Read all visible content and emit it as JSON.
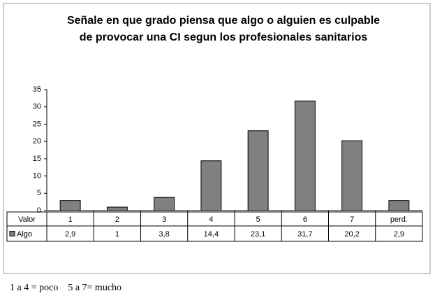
{
  "chart_data": {
    "type": "bar",
    "title": "Señale en que grado piensa que algo o alguien es culpable de provocar una CI segun los profesionales sanitarios",
    "x_label": "Valor",
    "categories": [
      "1",
      "2",
      "3",
      "4",
      "5",
      "6",
      "7",
      "perd."
    ],
    "series": [
      {
        "name": "Algo",
        "color": "#808080",
        "values": [
          2.9,
          1,
          3.8,
          14.4,
          23.1,
          31.7,
          20.2,
          2.9
        ],
        "value_labels": [
          "2,9",
          "1",
          "3,8",
          "14,4",
          "23,1",
          "31,7",
          "20,2",
          "2,9"
        ]
      }
    ],
    "ylim": [
      0,
      35
    ],
    "yticks": [
      0,
      5,
      10,
      15,
      20,
      25,
      30,
      35
    ],
    "grid": false,
    "note": "1 a 4 = poco    5 a 7= mucho"
  }
}
